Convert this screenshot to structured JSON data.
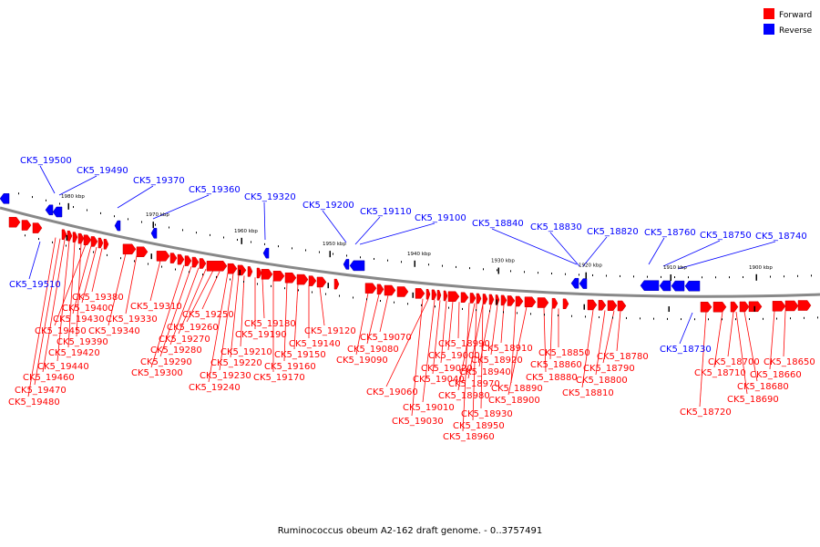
{
  "legend": [
    {
      "label": "Forward",
      "color": "#ff0000"
    },
    {
      "label": "Reverse",
      "color": "#0000ff"
    }
  ],
  "caption": "Ruminococcus obeum A2-162 draft genome. - 0..3757491",
  "scale": {
    "ticks": [
      "1980 kbp",
      "1970 kbp",
      "1960 kbp",
      "1950 kbp",
      "1940 kbp",
      "1930 kbp",
      "1920 kbp",
      "1910 kbp",
      "1900 kbp"
    ]
  },
  "genes": {
    "reverse_labels": [
      "CK5_19500",
      "CK5_19490",
      "CK5_19370",
      "CK5_19360",
      "CK5_19320",
      "CK5_19200",
      "CK5_19110",
      "CK5_19100",
      "CK5_18840",
      "CK5_18830",
      "CK5_18820",
      "CK5_18760",
      "CK5_18750",
      "CK5_18740",
      "CK5_19510",
      "CK5_18730"
    ],
    "forward_labels": [
      "CK5_19380",
      "CK5_19400",
      "CK5_19430",
      "CK5_19330",
      "CK5_19450",
      "CK5_19340",
      "CK5_19390",
      "CK5_19420",
      "CK5_19440",
      "CK5_19460",
      "CK5_19470",
      "CK5_19480",
      "CK5_19310",
      "CK5_19250",
      "CK5_19260",
      "CK5_19270",
      "CK5_19280",
      "CK5_19290",
      "CK5_19300",
      "CK5_19180",
      "CK5_19190",
      "CK5_19210",
      "CK5_19220",
      "CK5_19230",
      "CK5_19240",
      "CK5_19120",
      "CK5_19140",
      "CK5_19150",
      "CK5_19160",
      "CK5_19170",
      "CK5_19070",
      "CK5_19080",
      "CK5_19090",
      "CK5_18990",
      "CK5_19000",
      "CK5_19020",
      "CK5_19040",
      "CK5_19060",
      "CK5_19010",
      "CK5_19030",
      "CK5_18910",
      "CK5_18920",
      "CK5_18940",
      "CK5_18970",
      "CK5_18980",
      "CK5_18890",
      "CK5_18930",
      "CK5_18950",
      "CK5_18960",
      "CK5_18900",
      "CK5_18850",
      "CK5_18860",
      "CK5_18880",
      "CK5_18780",
      "CK5_18790",
      "CK5_18800",
      "CK5_18810",
      "CK5_18700",
      "CK5_18710",
      "CK5_18680",
      "CK5_18690",
      "CK5_18720",
      "CK5_18650",
      "CK5_18660"
    ]
  }
}
